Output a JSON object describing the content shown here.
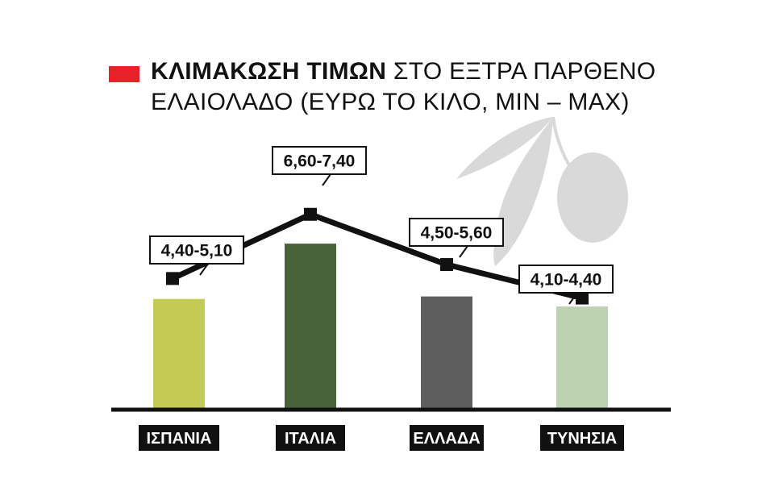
{
  "title": {
    "bold": "ΚΛΙΜΑΚΩΣΗ ΤΙΜΩΝ",
    "rest": " ΣΤΟ ΕΞΤΡΑ ΠΑΡΘΕΝΟ",
    "line2": "ΕΛΑΙΟΛΑΔΟ (ΕΥΡΩ ΤΟ ΚΙΛΟ, MIN – MAX)"
  },
  "colors": {
    "title_marker": "#e8202a",
    "line": "#111111",
    "baseline": "#111111",
    "olive_decoration": "#d9d9d9"
  },
  "decoration": "olive-branch-icon",
  "chart_data": {
    "type": "bar",
    "categories": [
      "ΙΣΠΑΝΙΑ",
      "ΙΤΑΛΙΑ",
      "ΕΛΛΑΔΑ",
      "ΤΥΝΗΣΙΑ"
    ],
    "series": [
      {
        "values": [
          4.4,
          6.6,
          4.5,
          4.1
        ]
      },
      {
        "values": [
          5.1,
          7.4,
          5.6,
          4.4
        ]
      }
    ],
    "value_labels": [
      "4,40-5,10",
      "6,60-7,40",
      "4,50-5,60",
      "4,10-4,40"
    ],
    "bar_colors": [
      "#c4cb55",
      "#4a6239",
      "#5e5e5e",
      "#bcd2b0"
    ],
    "line": "max values connected by a black line with square markers",
    "grid": false,
    "axes": false
  }
}
